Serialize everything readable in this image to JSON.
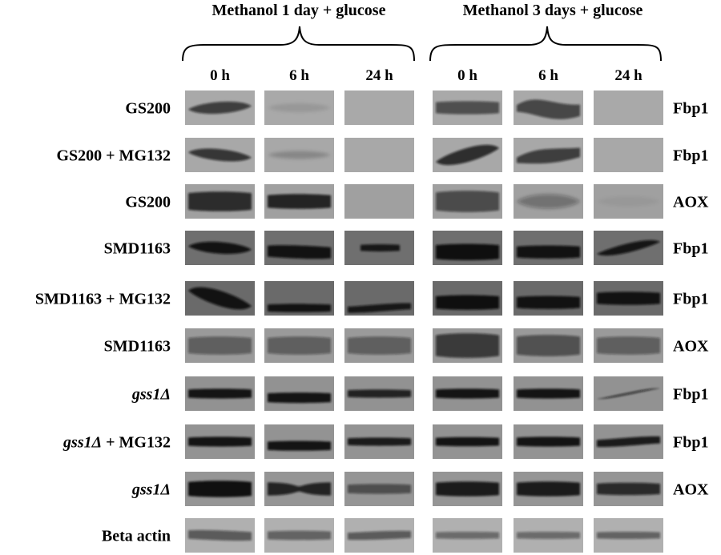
{
  "groups": [
    {
      "label": "Methanol 1 day + glucose"
    },
    {
      "label": "Methanol 3 days + glucose"
    }
  ],
  "timepoints": [
    "0 h",
    "6 h",
    "24 h",
    "0 h",
    "6 h",
    "24 h"
  ],
  "rows": [
    {
      "strain": "GS200",
      "strain_italic": "",
      "protein": "Fbp1",
      "bg": "#a9a9a9",
      "bands": [
        {
          "intensity": 0.7,
          "thickness": 0.45,
          "tilt": -0.1,
          "shape": "slope"
        },
        {
          "intensity": 0.1,
          "thickness": 0.35,
          "tilt": 0,
          "shape": "faint"
        },
        {
          "intensity": 0.0,
          "thickness": 0.0,
          "tilt": 0,
          "shape": "none"
        },
        {
          "intensity": 0.6,
          "thickness": 0.4,
          "tilt": 0,
          "shape": "flat"
        },
        {
          "intensity": 0.65,
          "thickness": 0.55,
          "tilt": 0.15,
          "shape": "wave"
        },
        {
          "intensity": 0.0,
          "thickness": 0.0,
          "tilt": 0,
          "shape": "none"
        }
      ]
    },
    {
      "strain": "GS200 + MG132",
      "strain_italic": "",
      "protein": "Fbp1",
      "bg": "#a8a8a8",
      "bands": [
        {
          "intensity": 0.75,
          "thickness": 0.45,
          "tilt": 0.15,
          "shape": "slope"
        },
        {
          "intensity": 0.2,
          "thickness": 0.3,
          "tilt": 0,
          "shape": "faint"
        },
        {
          "intensity": 0.0,
          "thickness": 0.0,
          "tilt": 0,
          "shape": "none"
        },
        {
          "intensity": 0.8,
          "thickness": 0.55,
          "tilt": -0.4,
          "shape": "slope"
        },
        {
          "intensity": 0.7,
          "thickness": 0.45,
          "tilt": -0.15,
          "shape": "wave"
        },
        {
          "intensity": 0.0,
          "thickness": 0.0,
          "tilt": 0,
          "shape": "none"
        }
      ]
    },
    {
      "strain": "GS200",
      "strain_italic": "",
      "protein": "AOX",
      "bg": "#a0a0a0",
      "bands": [
        {
          "intensity": 0.8,
          "thickness": 0.6,
          "tilt": 0,
          "shape": "flat"
        },
        {
          "intensity": 0.85,
          "thickness": 0.45,
          "tilt": 0,
          "shape": "flat"
        },
        {
          "intensity": 0.0,
          "thickness": 0.0,
          "tilt": 0,
          "shape": "none"
        },
        {
          "intensity": 0.6,
          "thickness": 0.65,
          "tilt": 0,
          "shape": "flat"
        },
        {
          "intensity": 0.35,
          "thickness": 0.55,
          "tilt": 0,
          "shape": "faint"
        },
        {
          "intensity": 0.05,
          "thickness": 0.4,
          "tilt": 0,
          "shape": "faint"
        }
      ]
    },
    {
      "strain": "SMD1163",
      "strain_italic": "",
      "protein": "Fbp1",
      "bg": "#6f6f6f",
      "bands": [
        {
          "intensity": 0.95,
          "thickness": 0.45,
          "tilt": 0.1,
          "shape": "slope"
        },
        {
          "intensity": 0.95,
          "thickness": 0.4,
          "tilt": 0.05,
          "shape": "low"
        },
        {
          "intensity": 0.9,
          "thickness": 0.22,
          "tilt": 0,
          "shape": "short"
        },
        {
          "intensity": 0.98,
          "thickness": 0.5,
          "tilt": 0,
          "shape": "low"
        },
        {
          "intensity": 0.95,
          "thickness": 0.4,
          "tilt": 0,
          "shape": "low"
        },
        {
          "intensity": 0.92,
          "thickness": 0.35,
          "tilt": -0.35,
          "shape": "slope"
        }
      ]
    },
    {
      "strain": "SMD1163 + MG132",
      "strain_italic": "",
      "protein": "Fbp1",
      "bg": "#6a6a6a",
      "bands": [
        {
          "intensity": 0.95,
          "thickness": 0.6,
          "tilt": 0.45,
          "shape": "slope"
        },
        {
          "intensity": 0.95,
          "thickness": 0.25,
          "tilt": 0,
          "shape": "bottom"
        },
        {
          "intensity": 0.9,
          "thickness": 0.22,
          "tilt": -0.1,
          "shape": "bottom"
        },
        {
          "intensity": 0.98,
          "thickness": 0.45,
          "tilt": 0,
          "shape": "low"
        },
        {
          "intensity": 0.95,
          "thickness": 0.4,
          "tilt": 0,
          "shape": "low"
        },
        {
          "intensity": 0.95,
          "thickness": 0.4,
          "tilt": 0,
          "shape": "flat"
        }
      ]
    },
    {
      "strain": "SMD1163",
      "strain_italic": "",
      "protein": "AOX",
      "bg": "#9a9a9a",
      "bands": [
        {
          "intensity": 0.45,
          "thickness": 0.55,
          "tilt": 0,
          "shape": "flat"
        },
        {
          "intensity": 0.45,
          "thickness": 0.55,
          "tilt": 0,
          "shape": "flat"
        },
        {
          "intensity": 0.45,
          "thickness": 0.55,
          "tilt": 0,
          "shape": "flat"
        },
        {
          "intensity": 0.7,
          "thickness": 0.75,
          "tilt": 0,
          "shape": "flat"
        },
        {
          "intensity": 0.55,
          "thickness": 0.65,
          "tilt": 0,
          "shape": "flat"
        },
        {
          "intensity": 0.45,
          "thickness": 0.55,
          "tilt": 0,
          "shape": "flat"
        }
      ]
    },
    {
      "strain": "",
      "strain_italic": "gss1Δ",
      "protein": "Fbp1",
      "bg": "#929292",
      "bands": [
        {
          "intensity": 0.95,
          "thickness": 0.3,
          "tilt": 0,
          "shape": "flat"
        },
        {
          "intensity": 0.95,
          "thickness": 0.32,
          "tilt": 0,
          "shape": "low"
        },
        {
          "intensity": 0.85,
          "thickness": 0.25,
          "tilt": 0,
          "shape": "flat"
        },
        {
          "intensity": 0.95,
          "thickness": 0.3,
          "tilt": 0,
          "shape": "flat"
        },
        {
          "intensity": 0.95,
          "thickness": 0.3,
          "tilt": 0,
          "shape": "flat"
        },
        {
          "intensity": 0.8,
          "thickness": 0.08,
          "tilt": -0.3,
          "shape": "slope"
        }
      ]
    },
    {
      "strain": "",
      "strain_italic": "gss1Δ",
      "protein": "Fbp1",
      "suffix": " + MG132",
      "bg": "#939393",
      "bands": [
        {
          "intensity": 0.95,
          "thickness": 0.3,
          "tilt": 0,
          "shape": "flat"
        },
        {
          "intensity": 0.95,
          "thickness": 0.3,
          "tilt": 0,
          "shape": "low"
        },
        {
          "intensity": 0.9,
          "thickness": 0.25,
          "tilt": 0,
          "shape": "flat"
        },
        {
          "intensity": 0.95,
          "thickness": 0.28,
          "tilt": 0,
          "shape": "flat"
        },
        {
          "intensity": 0.95,
          "thickness": 0.3,
          "tilt": 0,
          "shape": "flat"
        },
        {
          "intensity": 0.9,
          "thickness": 0.25,
          "tilt": -0.1,
          "shape": "flat"
        }
      ]
    },
    {
      "strain": "",
      "strain_italic": "gss1Δ",
      "protein": "AOX",
      "bg": "#959595",
      "bands": [
        {
          "intensity": 0.98,
          "thickness": 0.5,
          "tilt": 0,
          "shape": "flat"
        },
        {
          "intensity": 0.85,
          "thickness": 0.38,
          "tilt": 0,
          "shape": "pinch"
        },
        {
          "intensity": 0.55,
          "thickness": 0.3,
          "tilt": 0,
          "shape": "flat"
        },
        {
          "intensity": 0.9,
          "thickness": 0.45,
          "tilt": 0,
          "shape": "flat"
        },
        {
          "intensity": 0.9,
          "thickness": 0.45,
          "tilt": 0,
          "shape": "flat"
        },
        {
          "intensity": 0.8,
          "thickness": 0.38,
          "tilt": 0,
          "shape": "flat"
        }
      ]
    },
    {
      "strain": "Beta actin",
      "strain_italic": "",
      "protein": "",
      "bg": "#b0b0b0",
      "bands": [
        {
          "intensity": 0.55,
          "thickness": 0.3,
          "tilt": 0.05,
          "shape": "flat"
        },
        {
          "intensity": 0.5,
          "thickness": 0.28,
          "tilt": 0,
          "shape": "flat"
        },
        {
          "intensity": 0.55,
          "thickness": 0.25,
          "tilt": -0.05,
          "shape": "flat"
        },
        {
          "intensity": 0.45,
          "thickness": 0.22,
          "tilt": 0,
          "shape": "flat"
        },
        {
          "intensity": 0.45,
          "thickness": 0.22,
          "tilt": 0,
          "shape": "flat"
        },
        {
          "intensity": 0.5,
          "thickness": 0.22,
          "tilt": 0,
          "shape": "flat"
        }
      ]
    }
  ]
}
